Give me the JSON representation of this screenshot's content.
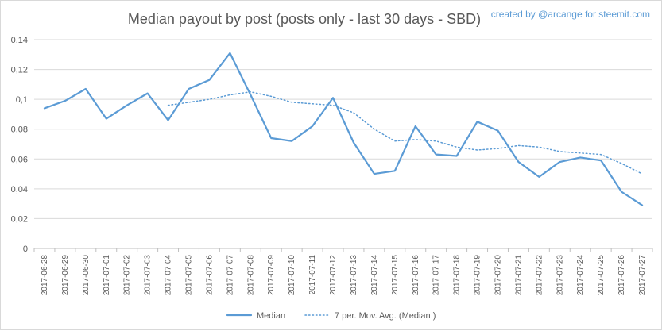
{
  "chart_data": {
    "type": "line",
    "title": "Median payout by post (posts only - last 30 days - SBD)",
    "credit": "created by @arcange for steemit.com",
    "ylim": [
      0,
      0.14
    ],
    "yticks": [
      "0",
      "0,02",
      "0,04",
      "0,06",
      "0,08",
      "0,1",
      "0,12",
      "0,14"
    ],
    "grid": true,
    "legend_position": "bottom",
    "categories": [
      "2017-06-28",
      "2017-06-29",
      "2017-06-30",
      "2017-07-01",
      "2017-07-02",
      "2017-07-03",
      "2017-07-04",
      "2017-07-05",
      "2017-07-06",
      "2017-07-07",
      "2017-07-08",
      "2017-07-09",
      "2017-07-10",
      "2017-07-11",
      "2017-07-12",
      "2017-07-13",
      "2017-07-14",
      "2017-07-15",
      "2017-07-16",
      "2017-07-17",
      "2017-07-18",
      "2017-07-19",
      "2017-07-20",
      "2017-07-21",
      "2017-07-22",
      "2017-07-23",
      "2017-07-24",
      "2017-07-25",
      "2017-07-26",
      "2017-07-27"
    ],
    "series": [
      {
        "name": "Median",
        "color": "#5b9bd5",
        "style": "solid",
        "values": [
          0.094,
          0.099,
          0.107,
          0.087,
          0.096,
          0.104,
          0.086,
          0.107,
          0.113,
          0.131,
          0.103,
          0.074,
          0.072,
          0.082,
          0.101,
          0.071,
          0.05,
          0.052,
          0.082,
          0.063,
          0.062,
          0.085,
          0.079,
          0.058,
          0.048,
          0.058,
          0.061,
          0.059,
          0.038,
          0.029
        ]
      },
      {
        "name": "7 per. Mov. Avg. (Median )",
        "color": "#5b9bd5",
        "style": "dotted",
        "values": [
          null,
          null,
          null,
          null,
          null,
          null,
          0.096,
          0.098,
          0.1,
          0.103,
          0.105,
          0.102,
          0.098,
          0.097,
          0.096,
          0.091,
          0.08,
          0.072,
          0.073,
          0.072,
          0.068,
          0.066,
          0.067,
          0.069,
          0.068,
          0.065,
          0.064,
          0.063,
          0.057,
          0.05
        ]
      }
    ]
  }
}
